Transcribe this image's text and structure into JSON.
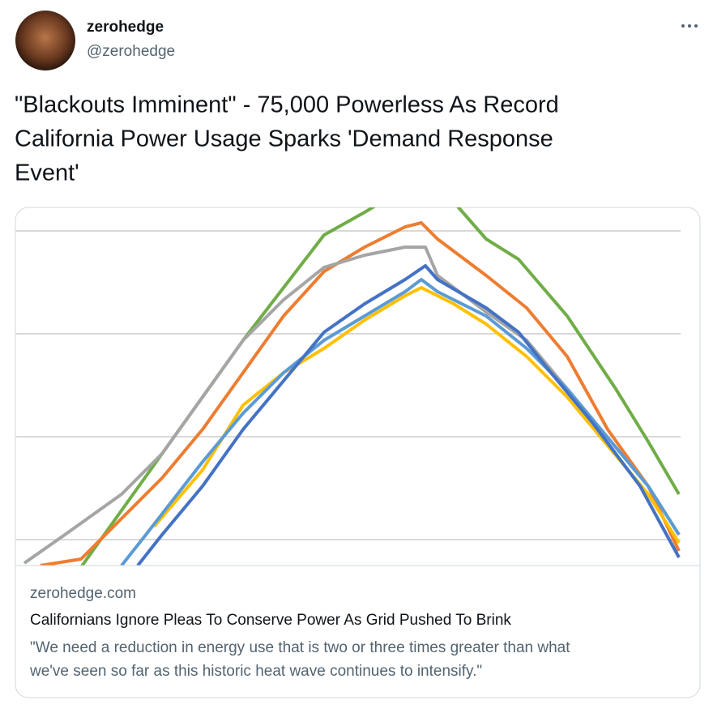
{
  "tweet": {
    "author": {
      "name": "zerohedge",
      "handle": "@zerohedge"
    },
    "text_lines": [
      "\"Blackouts Imminent\" - 75,000 Powerless As Record",
      "California Power Usage Sparks 'Demand Response",
      "Event'"
    ],
    "card": {
      "domain": "zerohedge.com",
      "title": "Californians Ignore Pleas To Conserve Power As Grid Pushed To Brink",
      "description_lines": [
        "\"We need a reduction in energy use that is two or three times greater than what",
        "we've seen so far as this historic heat wave continues to intensify.\""
      ]
    }
  }
}
